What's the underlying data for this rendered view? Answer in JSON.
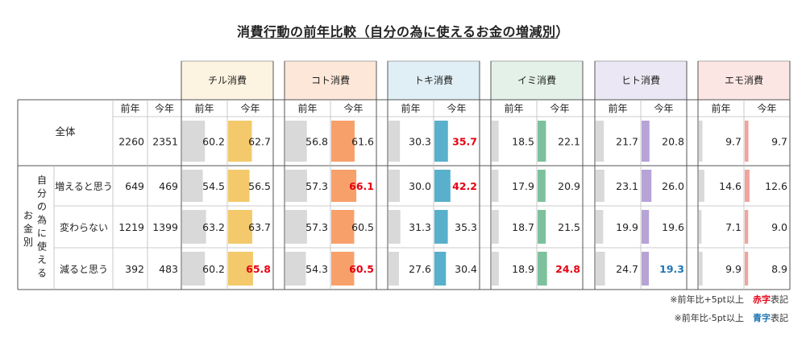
{
  "chart_data": {
    "type": "table",
    "title": "消費行動の前年比較（自分の為に使えるお金の増減別）",
    "col_headers": {
      "prev": "前年",
      "curr": "今年"
    },
    "side_label_chars": [
      "自",
      "分",
      "の",
      "為",
      "に",
      "使",
      "え",
      "る"
    ],
    "side_label_chars2": [
      "お",
      "金",
      "別"
    ],
    "rows": [
      {
        "label": "全体",
        "n_prev": "2260",
        "n_curr": "2351"
      },
      {
        "label": "増えると思う",
        "n_prev": "649",
        "n_curr": "469"
      },
      {
        "label": "変わらない",
        "n_prev": "1219",
        "n_curr": "1399"
      },
      {
        "label": "減ると思う",
        "n_prev": "392",
        "n_curr": "483"
      }
    ],
    "categories": [
      "チル消費",
      "コト消費",
      "トキ消費",
      "イミ消費",
      "ヒト消費",
      "エモ消費"
    ],
    "series": [
      {
        "name": "チル消費",
        "color": "#f3c96b",
        "header_bg": "#fdf3e1",
        "prev": [
          60.2,
          54.5,
          63.2,
          60.2
        ],
        "curr": [
          62.7,
          56.5,
          63.7,
          65.8
        ],
        "flags": [
          "",
          "",
          "",
          "up"
        ]
      },
      {
        "name": "コト消費",
        "color": "#f7a06a",
        "header_bg": "#fce7d8",
        "prev": [
          56.8,
          57.3,
          57.3,
          54.3
        ],
        "curr": [
          61.6,
          66.1,
          60.5,
          60.5
        ],
        "flags": [
          "",
          "up",
          "",
          "up"
        ]
      },
      {
        "name": "トキ消費",
        "color": "#58b0cc",
        "header_bg": "#e0eff5",
        "prev": [
          30.3,
          30.0,
          31.3,
          27.6
        ],
        "curr": [
          35.7,
          42.2,
          35.3,
          30.4
        ],
        "flags": [
          "up",
          "up",
          "",
          ""
        ]
      },
      {
        "name": "イミ消費",
        "color": "#7cc19c",
        "header_bg": "#e3f1e8",
        "prev": [
          18.5,
          17.9,
          18.7,
          18.9
        ],
        "curr": [
          22.1,
          20.9,
          21.5,
          24.8
        ],
        "flags": [
          "",
          "",
          "",
          "up"
        ]
      },
      {
        "name": "ヒト消費",
        "color": "#b7a3d6",
        "header_bg": "#ece7f4",
        "prev": [
          21.7,
          23.1,
          19.9,
          24.7
        ],
        "curr": [
          20.8,
          26.0,
          19.6,
          19.3
        ],
        "flags": [
          "",
          "",
          "",
          "down"
        ]
      },
      {
        "name": "エモ消費",
        "color": "#f1a49c",
        "header_bg": "#fce6e3",
        "prev": [
          9.7,
          14.6,
          7.1,
          9.9
        ],
        "curr": [
          9.7,
          12.6,
          9.0,
          8.9
        ],
        "flags": [
          "",
          "",
          "",
          ""
        ]
      }
    ],
    "prev_bar_color": "#d9d9d9",
    "up_color": "#e60012",
    "down_color": "#1f76b4",
    "ylim": [
      0,
      100
    ]
  },
  "notes": {
    "note1_prefix": "※前年比+5pt以上",
    "note1_highlight": "赤字",
    "note1_suffix": "表記",
    "note2_prefix": "※前年比-5pt以上",
    "note2_highlight": "青字",
    "note2_suffix": "表記"
  }
}
